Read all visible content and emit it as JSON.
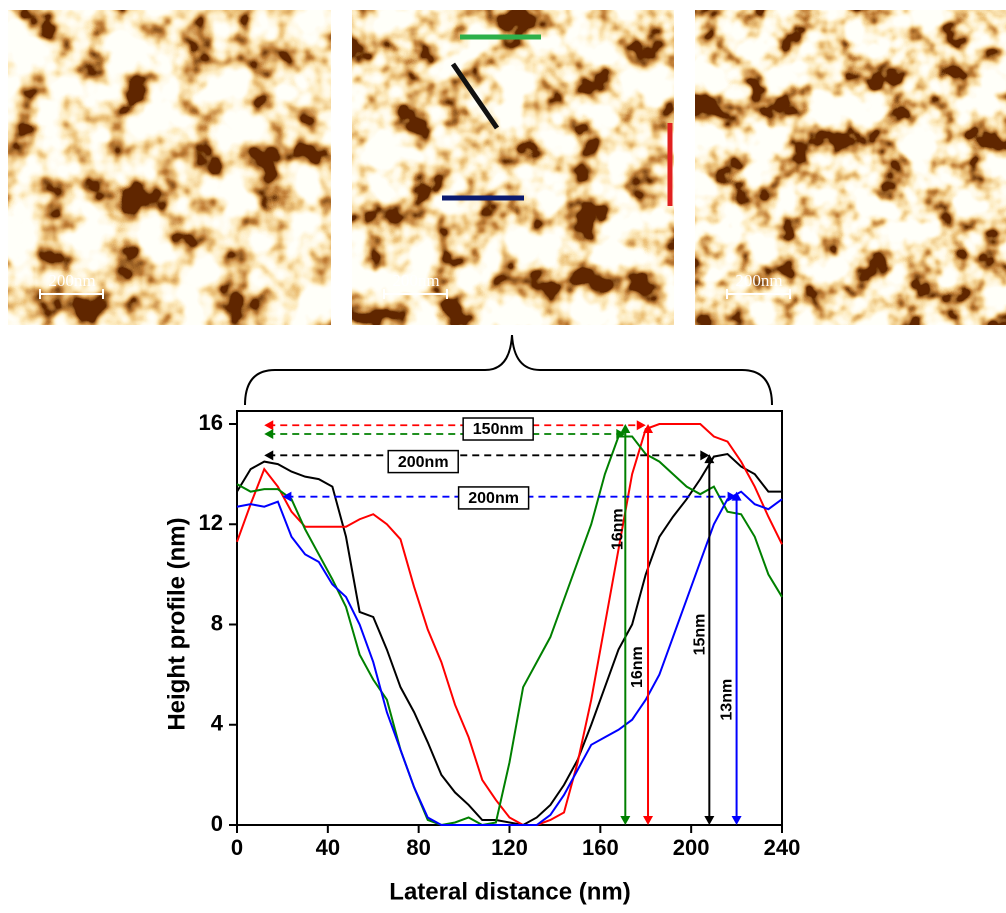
{
  "images": [
    {
      "scale_label": "200nm"
    },
    {
      "scale_label": "200nm"
    },
    {
      "scale_label": "200nm"
    }
  ],
  "chart_data": {
    "type": "line",
    "xlabel": "Lateral distance (nm)",
    "ylabel": "Height profile (nm)",
    "x": [
      0,
      6,
      12,
      18,
      24,
      30,
      36,
      42,
      48,
      54,
      60,
      66,
      72,
      78,
      84,
      90,
      96,
      102,
      108,
      114,
      120,
      126,
      132,
      138,
      144,
      150,
      156,
      162,
      168,
      174,
      180,
      186,
      192,
      198,
      204,
      210,
      216,
      222,
      228,
      234,
      240
    ],
    "series": [
      {
        "color": "#000000",
        "values": [
          13.3,
          14.2,
          14.5,
          14.4,
          14.1,
          13.9,
          13.8,
          13.5,
          11.5,
          8.5,
          8.3,
          7,
          5.5,
          4.5,
          3.3,
          2,
          1.3,
          0.8,
          0.2,
          0.2,
          0.1,
          0,
          0.3,
          0.8,
          1.6,
          2.6,
          4,
          5.5,
          7,
          8,
          10,
          11.5,
          12.3,
          13,
          13.8,
          14.7,
          14.8,
          14.3,
          14,
          13.3,
          13.3
        ]
      },
      {
        "color": "#ff0000",
        "values": [
          11.3,
          12.8,
          14.2,
          13.5,
          12.5,
          11.9,
          11.9,
          11.9,
          11.9,
          12.2,
          12.4,
          12,
          11.4,
          9.5,
          7.8,
          6.5,
          4.8,
          3.5,
          1.8,
          1,
          0.3,
          0,
          0,
          0.2,
          0.5,
          2.5,
          5,
          8,
          11,
          14,
          15.8,
          16,
          16,
          16,
          16,
          15.5,
          15.3,
          14.5,
          13.5,
          12.3,
          11.2
        ]
      },
      {
        "color": "#008000",
        "values": [
          13.6,
          13.3,
          13.4,
          13.4,
          13,
          11.8,
          10.8,
          9.8,
          8.7,
          6.8,
          5.8,
          5,
          3,
          1.5,
          0.2,
          0,
          0.1,
          0.3,
          0,
          0.1,
          2.5,
          5.5,
          6.5,
          7.5,
          9,
          10.5,
          12,
          14,
          15.5,
          15.5,
          14.8,
          14.5,
          14,
          13.5,
          13.2,
          13.5,
          12.5,
          12.4,
          11.5,
          10,
          9.1
        ]
      },
      {
        "color": "#0000ff",
        "values": [
          12.7,
          12.8,
          12.7,
          12.9,
          11.5,
          10.8,
          10.5,
          9.6,
          9.1,
          8,
          6.5,
          4.5,
          3,
          1.5,
          0.3,
          0,
          0,
          0,
          0,
          0,
          0,
          0,
          0,
          0.4,
          1.2,
          2.2,
          3.2,
          3.5,
          3.8,
          4.2,
          5,
          6,
          7.5,
          9,
          10.5,
          12,
          13,
          13.3,
          12.8,
          12.6,
          13
        ]
      }
    ],
    "xlim": [
      0,
      240
    ],
    "xticks": [
      0,
      40,
      80,
      120,
      160,
      200,
      240
    ],
    "ylim": [
      0,
      16
    ],
    "yticks": [
      0,
      4,
      8,
      12,
      16
    ],
    "h_arrows": [
      {
        "color": "#ff0000",
        "x1": 12,
        "x2": 180,
        "y": 15.95
      },
      {
        "color": "#008000",
        "x1": 12,
        "x2": 171,
        "y": 15.6
      },
      {
        "color": "#000000",
        "x1": 12,
        "x2": 208,
        "y": 14.75
      },
      {
        "color": "#0000ff",
        "x1": 20,
        "x2": 220,
        "y": 13.1
      }
    ],
    "v_arrows": [
      {
        "color": "#008000",
        "x": 171,
        "y1": 0,
        "y2": 16
      },
      {
        "color": "#ff0000",
        "x": 181,
        "y1": 0,
        "y2": 16
      },
      {
        "color": "#000000",
        "x": 208,
        "y1": 0,
        "y2": 14.8
      },
      {
        "color": "#0000ff",
        "x": 220,
        "y1": 0,
        "y2": 13.3
      }
    ],
    "box_labels": [
      {
        "text": "150nm",
        "x": 115,
        "y": 15.8
      },
      {
        "text": "200nm",
        "x": 82,
        "y": 14.5
      },
      {
        "text": "200nm",
        "x": 113,
        "y": 13.05
      }
    ],
    "rot_labels": [
      {
        "text": "16nm",
        "x": 168,
        "y": 11.8
      },
      {
        "text": "16nm",
        "x": 176.5,
        "y": 6.3
      },
      {
        "text": "15nm",
        "x": 204,
        "y": 7.6
      },
      {
        "text": "13nm",
        "x": 216,
        "y": 5
      }
    ]
  }
}
